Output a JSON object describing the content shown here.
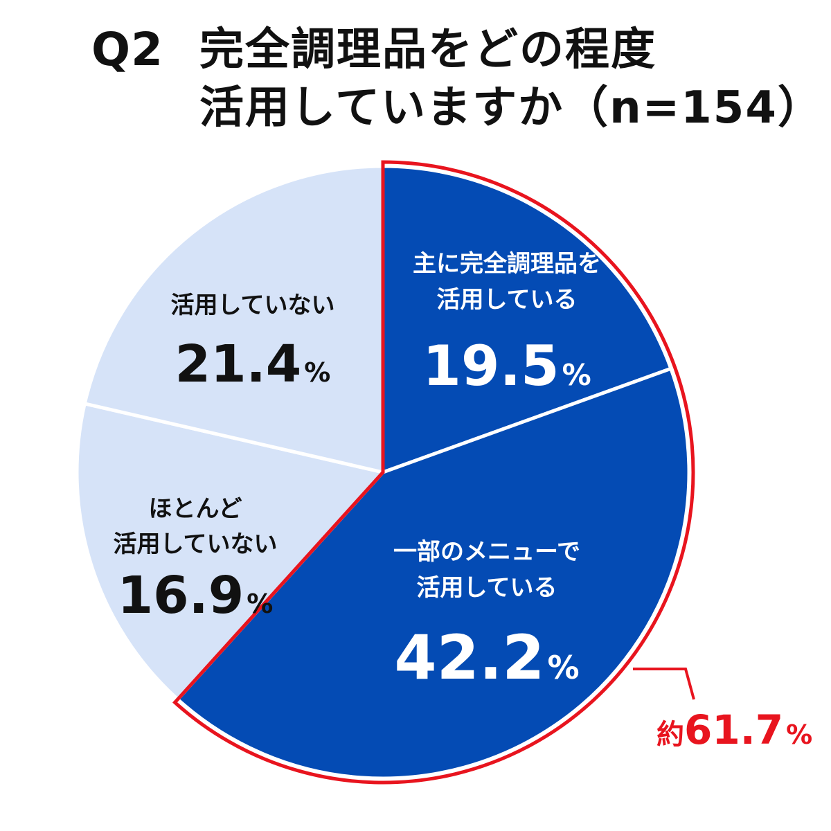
{
  "header": {
    "qnum": "Q2",
    "title_line1": "完全調理品をどの程度",
    "title_line2": "活用していますか（n=154）"
  },
  "chart_data": {
    "type": "pie",
    "title": "完全調理品をどの程度活用していますか（n=154）",
    "unit": "%",
    "slices": [
      {
        "label_lines": [
          "主に完全調理品を",
          "活用している"
        ],
        "value": 19.5,
        "display": "19.5",
        "color": "#044BB4",
        "text_color": "#FFFFFF"
      },
      {
        "label_lines": [
          "一部のメニューで",
          "活用している"
        ],
        "value": 42.2,
        "display": "42.2",
        "color": "#044BB4",
        "text_color": "#FFFFFF"
      },
      {
        "label_lines": [
          "ほとんど",
          "活用していない"
        ],
        "value": 16.9,
        "display": "16.9",
        "color": "#D6E3F8",
        "text_color": "#111111"
      },
      {
        "label_lines": [
          "活用していない"
        ],
        "value": 21.4,
        "display": "21.4",
        "color": "#D6E3F8",
        "text_color": "#111111"
      }
    ],
    "highlight": {
      "prefix": "約",
      "value": "61.7",
      "unit": "%",
      "covers": [
        "主に完全調理品を活用している",
        "一部のメニューで活用している"
      ],
      "color": "#E8141E"
    }
  }
}
